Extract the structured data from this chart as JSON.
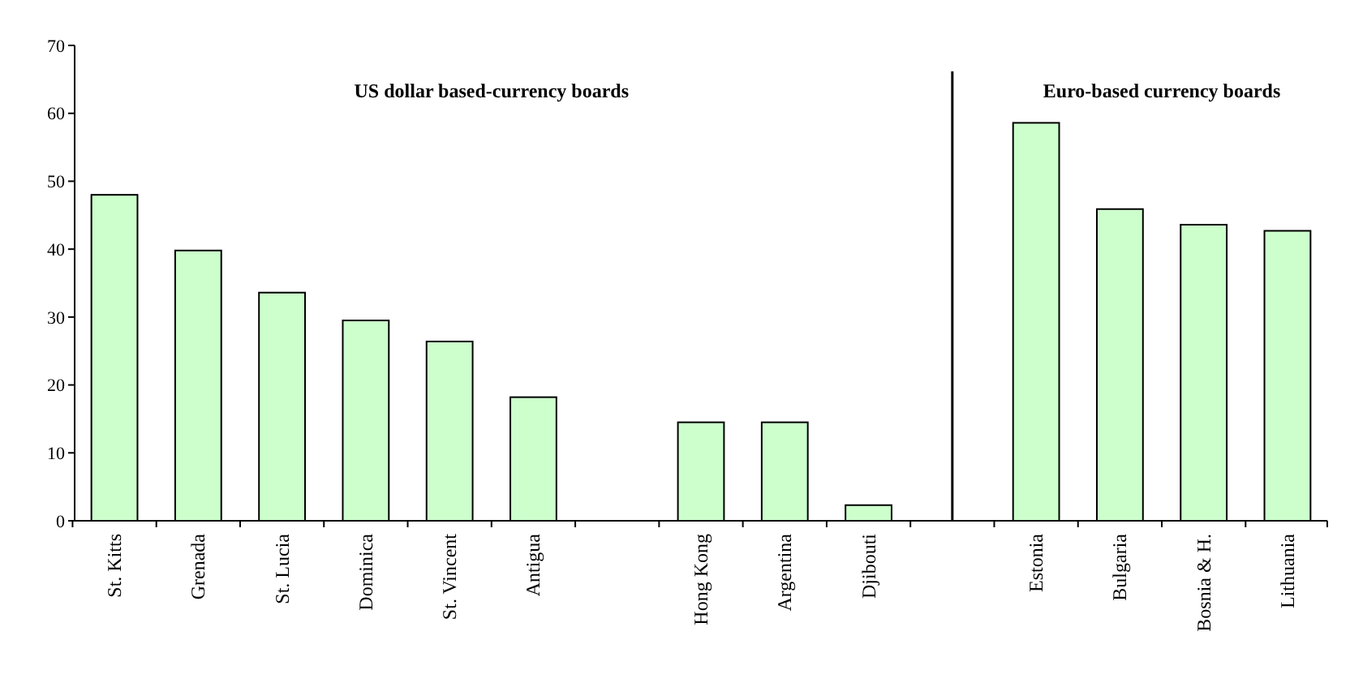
{
  "chart_data": {
    "type": "bar",
    "categories": [
      "St. Kitts",
      "Grenada",
      "St. Lucia",
      "Dominica",
      "St. Vincent",
      "Antigua",
      null,
      "Hong Kong",
      "Argentina",
      "Djibouti",
      null,
      "Estonia",
      "Bulgaria",
      "Bosnia & H.",
      "Lithuania"
    ],
    "values": [
      48,
      39.8,
      33.6,
      29.5,
      26.4,
      18.2,
      null,
      14.5,
      14.5,
      2.3,
      null,
      58.6,
      45.9,
      43.6,
      42.7
    ],
    "color": "#ccffcc",
    "ylim": [
      0,
      70
    ],
    "yticks": [
      0,
      10,
      20,
      30,
      40,
      50,
      60,
      70
    ],
    "annotations": [
      "US dollar based-currency boards",
      "Euro-based currency boards"
    ]
  }
}
